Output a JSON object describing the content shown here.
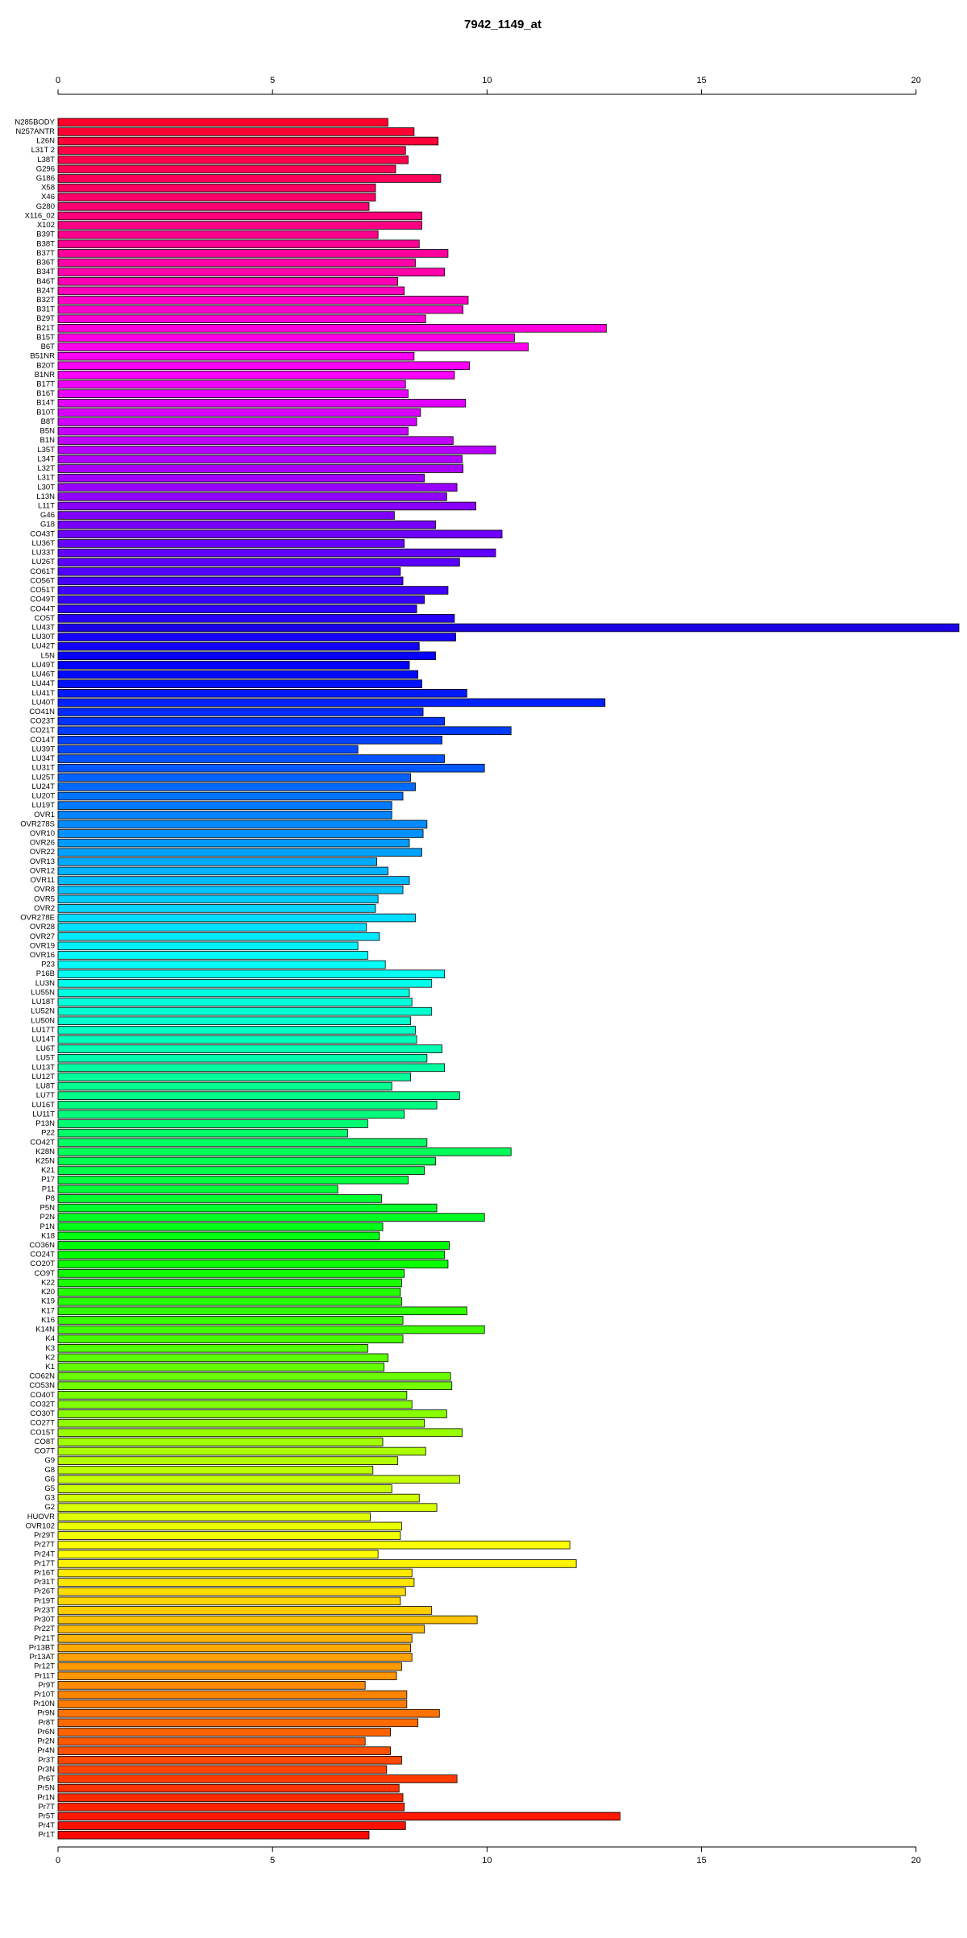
{
  "chart_data": {
    "type": "bar",
    "orientation": "horizontal",
    "title": "7942_1149_at",
    "categories": [
      "N285BODY",
      "N257ANTR",
      "L26N",
      "L31T 2",
      "L38T",
      "G296",
      "G186",
      "X58",
      "X46",
      "G280",
      "X116_02",
      "X102",
      "B39T",
      "B38T",
      "B37T",
      "B36T",
      "B34T",
      "B46T",
      "B24T",
      "B32T",
      "B31T",
      "B29T",
      "B21T",
      "B15T",
      "B6T",
      "B51NR",
      "B20T",
      "B1NR",
      "B17T",
      "B16T",
      "B14T",
      "B10T",
      "B8T",
      "B5N",
      "B1N",
      "L35T",
      "L34T",
      "L32T",
      "L31T",
      "L30T",
      "L13N",
      "L11T",
      "G46",
      "G18",
      "CO43T",
      "LU36T",
      "LU33T",
      "LU26T",
      "CO61T",
      "CO56T",
      "CO51T",
      "CO49T",
      "CO44T",
      "CO5T",
      "LU43T",
      "LU30T",
      "LU42T",
      "L5N",
      "LU49T",
      "LU46T",
      "LU44T",
      "LU41T",
      "LU40T",
      "CO41N",
      "CO23T",
      "CO21T",
      "CO14T",
      "LU39T",
      "LU34T",
      "LU31T",
      "LU25T",
      "LU24T",
      "LU20T",
      "LU19T",
      "OVR1",
      "OVR278S",
      "OVR10",
      "OVR26",
      "OVR22",
      "OVR13",
      "OVR12",
      "OVR11",
      "OVR8",
      "OVR5",
      "OVR2",
      "OVR278E",
      "OVR28",
      "OVR27",
      "OVR19",
      "OVR16",
      "P23",
      "P16B",
      "LU3N",
      "LU55N",
      "LU18T",
      "LU52N",
      "LU50N",
      "LU17T",
      "LU14T",
      "LU6T",
      "LU5T",
      "LU13T",
      "LU12T",
      "LU8T",
      "LU7T",
      "LU16T",
      "LU11T",
      "P13N",
      "P22",
      "CO42T",
      "K28N",
      "K25N",
      "K21",
      "P17",
      "P11",
      "P8",
      "P5N",
      "P2N",
      "P1N",
      "K18",
      "CO36N",
      "CO24T",
      "CO20T",
      "CO9T",
      "K22",
      "K20",
      "K19",
      "K17",
      "K16",
      "K14N",
      "K4",
      "K3",
      "K2",
      "K1",
      "CO62N",
      "CO53N",
      "CO40T",
      "CO32T",
      "CO30T",
      "CO27T",
      "CO15T",
      "CO8T",
      "CO7T",
      "G9",
      "G8",
      "G6",
      "G5",
      "G3",
      "G2",
      "HUOVR",
      "OVR102",
      "Pr29T",
      "Pr27T",
      "Pr24T",
      "Pr17T",
      "Pr16T",
      "Pr31T",
      "Pr26T",
      "Pr19T",
      "Pr23T",
      "Pr30T",
      "Pr22T",
      "Pr21T",
      "Pr13BT",
      "Pr13AT",
      "Pr12T",
      "Pr11T",
      "Pr9T",
      "Pr10T",
      "Pr10N",
      "Pr9N",
      "Pr8T",
      "Pr6N",
      "Pr2N",
      "Pr4N",
      "Pr3T",
      "Pr3N",
      "Pr6T",
      "Pr5N",
      "Pr1N",
      "Pr7T",
      "Pr5T",
      "Pr4T",
      "Pr1T"
    ],
    "values": [
      7.69,
      8.3,
      8.86,
      8.1,
      8.16,
      7.87,
      8.92,
      7.4,
      7.4,
      7.25,
      8.48,
      8.48,
      7.46,
      8.42,
      9.09,
      8.33,
      9.01,
      7.92,
      8.07,
      9.56,
      9.44,
      8.57,
      12.78,
      10.64,
      10.96,
      8.3,
      9.59,
      9.24,
      8.1,
      8.16,
      9.5,
      8.45,
      8.36,
      8.16,
      9.21,
      10.2,
      9.42,
      9.44,
      8.54,
      9.3,
      9.06,
      9.74,
      7.84,
      8.8,
      10.35,
      8.07,
      10.2,
      9.36,
      7.98,
      8.04,
      9.09,
      8.54,
      8.36,
      9.24,
      21,
      9.27,
      8.42,
      8.8,
      8.19,
      8.39,
      8.48,
      9.53,
      12.75,
      8.51,
      9.01,
      10.56,
      8.95,
      6.99,
      9.01,
      9.94,
      8.22,
      8.33,
      8.04,
      7.78,
      7.78,
      8.6,
      8.51,
      8.19,
      8.48,
      7.43,
      7.69,
      8.19,
      8.04,
      7.46,
      7.4,
      8.33,
      7.19,
      7.49,
      6.99,
      7.22,
      7.63,
      9.01,
      8.71,
      8.19,
      8.25,
      8.71,
      8.22,
      8.33,
      8.36,
      8.95,
      8.6,
      9.01,
      8.22,
      7.78,
      9.36,
      8.83,
      8.07,
      7.22,
      6.75,
      8.6,
      10.56,
      8.8,
      8.54,
      8.16,
      6.52,
      7.54,
      8.83,
      9.94,
      7.57,
      7.49,
      9.12,
      9.01,
      9.09,
      8.07,
      8.01,
      7.98,
      8.01,
      9.53,
      8.04,
      9.94,
      8.04,
      7.22,
      7.69,
      7.6,
      9.15,
      9.18,
      8.13,
      8.25,
      9.06,
      8.54,
      9.42,
      7.57,
      8.57,
      7.92,
      7.34,
      9.36,
      7.78,
      8.42,
      8.83,
      7.28,
      8.01,
      7.98,
      11.93,
      7.46,
      12.08,
      8.25,
      8.3,
      8.1,
      7.98,
      8.71,
      9.77,
      8.54,
      8.25,
      8.22,
      8.25,
      8.01,
      7.89,
      7.16,
      8.13,
      8.13,
      8.89,
      8.39,
      7.75,
      7.16,
      7.75,
      8.01,
      7.66,
      9.3,
      7.95,
      8.04,
      8.07,
      13.1,
      8.1,
      7.25
    ],
    "colors": [
      "hsl(350,100%,50%)",
      "hsl(348,100%,50%)",
      "hsl(346,100%,50%)",
      "hsl(344,100%,50%)",
      "hsl(342,100%,50%)",
      "hsl(340,100%,50%)",
      "hsl(339,100%,50%)",
      "hsl(337,100%,50%)",
      "hsl(335,100%,50%)",
      "hsl(333,100%,50%)",
      "hsl(331,100%,50%)",
      "hsl(329,100%,50%)",
      "hsl(327,100%,50%)",
      "hsl(325,100%,50%)",
      "hsl(323,100%,50%)",
      "hsl(321,100%,50%)",
      "hsl(320,100%,50%)",
      "hsl(318,100%,50%)",
      "hsl(316,100%,50%)",
      "hsl(314,100%,50%)",
      "hsl(312,100%,50%)",
      "hsl(310,100%,50%)",
      "hsl(308,100%,50%)",
      "hsl(306,100%,50%)",
      "hsl(304,100%,50%)",
      "hsl(302,100%,50%)",
      "hsl(301,100%,50%)",
      "hsl(299,100%,50%)",
      "hsl(297,100%,50%)",
      "hsl(295,100%,50%)",
      "hsl(293,100%,50%)",
      "hsl(291,100%,50%)",
      "hsl(289,100%,50%)",
      "hsl(287,100%,50%)",
      "hsl(285,100%,50%)",
      "hsl(283,100%,50%)",
      "hsl(282,100%,50%)",
      "hsl(280,100%,50%)",
      "hsl(278,100%,50%)",
      "hsl(276,100%,50%)",
      "hsl(274,100%,50%)",
      "hsl(272,100%,50%)",
      "hsl(270,100%,50%)",
      "hsl(268,100%,50%)",
      "hsl(266,100%,50%)",
      "hsl(264,100%,50%)",
      "hsl(263,100%,50%)",
      "hsl(261,100%,50%)",
      "hsl(259,100%,50%)",
      "hsl(257,100%,50%)",
      "hsl(255,100%,50%)",
      "hsl(253,100%,50%)",
      "hsl(251,100%,50%)",
      "hsl(249,100%,50%)",
      "hsl(247,100%,45%)",
      "hsl(245,100%,50%)",
      "hsl(244,100%,50%)",
      "hsl(242,100%,50%)",
      "hsl(240,100%,50%)",
      "hsl(238,100%,50%)",
      "hsl(236,100%,50%)",
      "hsl(234,100%,50%)",
      "hsl(232,100%,50%)",
      "hsl(230,100%,50%)",
      "hsl(228,100%,50%)",
      "hsl(226,100%,50%)",
      "hsl(225,100%,50%)",
      "hsl(223,100%,50%)",
      "hsl(221,100%,50%)",
      "hsl(219,100%,50%)",
      "hsl(217,100%,50%)",
      "hsl(215,100%,50%)",
      "hsl(213,100%,50%)",
      "hsl(211,100%,50%)",
      "hsl(209,100%,50%)",
      "hsl(207,100%,50%)",
      "hsl(206,100%,50%)",
      "hsl(204,100%,50%)",
      "hsl(202,100%,50%)",
      "hsl(200,100%,50%)",
      "hsl(198,100%,50%)",
      "hsl(196,100%,50%)",
      "hsl(194,100%,50%)",
      "hsl(192,100%,50%)",
      "hsl(190,100%,50%)",
      "hsl(188,100%,50%)",
      "hsl(187,100%,50%)",
      "hsl(185,100%,50%)",
      "hsl(183,100%,50%)",
      "hsl(181,100%,50%)",
      "hsl(179,100%,50%)",
      "hsl(177,100%,50%)",
      "hsl(175,100%,50%)",
      "hsl(173,100%,50%)",
      "hsl(171,100%,50%)",
      "hsl(169,100%,50%)",
      "hsl(168,100%,50%)",
      "hsl(166,100%,50%)",
      "hsl(164,100%,50%)",
      "hsl(162,100%,50%)",
      "hsl(160,100%,50%)",
      "hsl(158,100%,50%)",
      "hsl(156,100%,50%)",
      "hsl(154,100%,50%)",
      "hsl(152,100%,50%)",
      "hsl(150,100%,50%)",
      "hsl(149,100%,50%)",
      "hsl(147,100%,50%)",
      "hsl(145,100%,50%)",
      "hsl(143,100%,50%)",
      "hsl(141,100%,50%)",
      "hsl(139,100%,50%)",
      "hsl(137,100%,50%)",
      "hsl(135,100%,50%)",
      "hsl(133,100%,50%)",
      "hsl(131,100%,50%)",
      "hsl(130,100%,50%)",
      "hsl(128,100%,50%)",
      "hsl(126,100%,50%)",
      "hsl(124,100%,50%)",
      "hsl(122,100%,50%)",
      "hsl(120,100%,50%)",
      "hsl(118,100%,50%)",
      "hsl(116,100%,50%)",
      "hsl(114,100%,50%)",
      "hsl(112,100%,50%)",
      "hsl(111,100%,50%)",
      "hsl(109,100%,50%)",
      "hsl(107,100%,50%)",
      "hsl(105,100%,50%)",
      "hsl(103,100%,50%)",
      "hsl(101,100%,50%)",
      "hsl(99,100%,50%)",
      "hsl(97,100%,50%)",
      "hsl(95,100%,50%)",
      "hsl(93,100%,50%)",
      "hsl(92,100%,50%)",
      "hsl(90,100%,50%)",
      "hsl(88,100%,50%)",
      "hsl(86,100%,50%)",
      "hsl(84,100%,50%)",
      "hsl(82,100%,50%)",
      "hsl(80,100%,50%)",
      "hsl(78,100%,50%)",
      "hsl(76,100%,50%)",
      "hsl(74,100%,50%)",
      "hsl(73,100%,50%)",
      "hsl(71,100%,50%)",
      "hsl(69,100%,50%)",
      "hsl(67,100%,50%)",
      "hsl(65,100%,50%)",
      "hsl(63,100%,50%)",
      "hsl(61,100%,50%)",
      "hsl(59,100%,50%)",
      "hsl(57,100%,50%)",
      "hsl(55,100%,50%)",
      "hsl(54,100%,50%)",
      "hsl(52,100%,50%)",
      "hsl(50,100%,50%)",
      "hsl(48,100%,50%)",
      "hsl(46,100%,50%)",
      "hsl(44,100%,50%)",
      "hsl(42,100%,50%)",
      "hsl(40,100%,50%)",
      "hsl(38,100%,50%)",
      "hsl(36,100%,50%)",
      "hsl(35,100%,50%)",
      "hsl(33,100%,50%)",
      "hsl(31,100%,50%)",
      "hsl(29,100%,50%)",
      "hsl(27,100%,50%)",
      "hsl(25,100%,50%)",
      "hsl(23,100%,50%)",
      "hsl(21,100%,50%)",
      "hsl(19,100%,50%)",
      "hsl(17,100%,50%)",
      "hsl(16,100%,50%)",
      "hsl(14,100%,50%)",
      "hsl(12,100%,50%)",
      "hsl(10,100%,50%)",
      "hsl(8,100%,50%)",
      "hsl(6,100%,50%)",
      "hsl(4,100%,50%)",
      "hsl(2,100%,50%)"
    ],
    "xlim": [
      0,
      21
    ],
    "xticks": [
      0,
      5,
      10,
      15,
      20
    ]
  }
}
